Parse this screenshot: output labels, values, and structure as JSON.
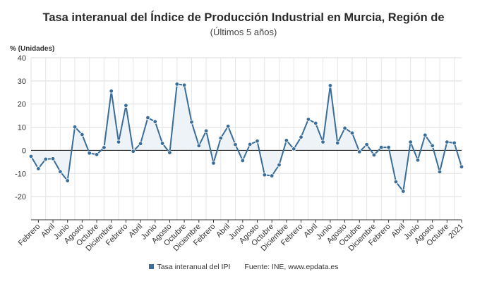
{
  "chart_data": {
    "type": "line",
    "title": "Tasa interanual del Índice de Producción Industrial en Murcia, Región de",
    "subtitle": "(Últimos 5 años)",
    "ylabel": "% (Unidades)",
    "ylim": [
      -30,
      40
    ],
    "yticks": [
      -20,
      -10,
      0,
      10,
      20,
      30,
      40
    ],
    "grid": true,
    "legend_position": "bottom",
    "color": "#3a6d99",
    "area_fill": "#eef3f8",
    "x_labels": [
      "Febrero",
      "Abril",
      "Junio",
      "Agosto",
      "Octubre",
      "Diciembre",
      "Febrero",
      "Abril",
      "Junio",
      "Agosto",
      "Octubre",
      "Diciembre",
      "Febrero",
      "Abril",
      "Junio",
      "Agosto",
      "Octubre",
      "Diciembre",
      "Febrero",
      "Abril",
      "Junio",
      "Agosto",
      "Octubre",
      "Diciembre",
      "Febrero",
      "Abril",
      "Junio",
      "Agosto",
      "Octubre",
      "2021"
    ],
    "series": [
      {
        "name": "Tasa interanual del IPI",
        "values": [
          -2.6,
          -7.9,
          -3.8,
          -3.6,
          -9.2,
          -13.1,
          10.1,
          6.8,
          -1.2,
          -1.8,
          1.2,
          25.6,
          3.6,
          19.4,
          -0.4,
          2.9,
          14.1,
          12.4,
          3.0,
          -1.0,
          28.6,
          28.2,
          12.2,
          2.0,
          8.4,
          -5.5,
          5.3,
          10.4,
          2.5,
          -4.4,
          2.6,
          4.0,
          -10.6,
          -11.0,
          -6.3,
          4.3,
          0.6,
          5.7,
          13.4,
          11.7,
          3.6,
          28.0,
          3.2,
          9.6,
          7.5,
          -0.6,
          2.5,
          -2.0,
          1.3,
          1.3,
          -13.6,
          -17.7,
          3.6,
          -4.2,
          6.6,
          2.0,
          -9.3,
          3.6,
          3.2,
          -7.1
        ]
      }
    ]
  },
  "legend": {
    "series_label": "Tasa interanual del IPI",
    "source": "Fuente: INE, www.epdata.es"
  }
}
